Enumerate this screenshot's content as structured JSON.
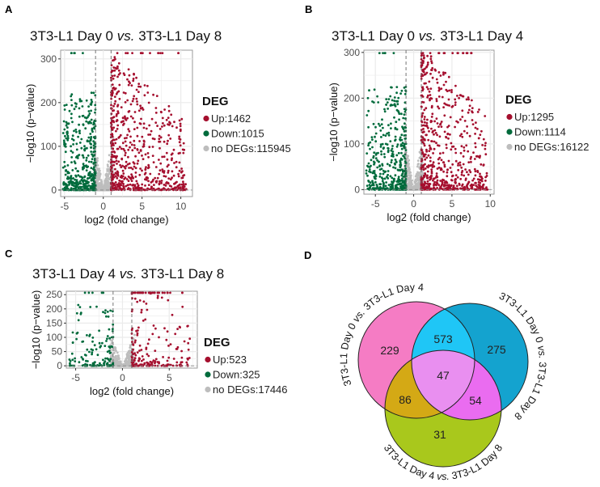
{
  "panels": {
    "a": {
      "letter": "A"
    },
    "b": {
      "letter": "B"
    },
    "c": {
      "letter": "C"
    },
    "d": {
      "letter": "D"
    }
  },
  "colors": {
    "up": "#a50f2e",
    "down": "#006b3c",
    "none": "#bdbdbd",
    "venn_pink": "#f57cc4",
    "venn_blue": "#14a3cf",
    "venn_green": "#a9c81c"
  },
  "chart_data": [
    {
      "type": "scatter",
      "title_pre": "3T3-L1 Day 0 ",
      "title_vs": "vs.",
      "title_post": " 3T3-L1 Day 8",
      "xlabel": "log2 (fold change)",
      "ylabel": "−log10 (p−value)",
      "xlim": [
        -5.5,
        11.5
      ],
      "ylim": [
        -15,
        320
      ],
      "xticks": [
        "-5",
        "0",
        "5",
        "10"
      ],
      "yticks": [
        "0",
        "100",
        "200",
        "300"
      ],
      "thresholds": {
        "log2fc": [
          -1,
          1
        ],
        "neglog10p": 0
      },
      "grid": true,
      "legend": {
        "title": "DEG",
        "position": "right",
        "items": [
          "Up:1462",
          "Down:1015",
          "no DEGs:115945"
        ]
      },
      "counts": {
        "up": 1462,
        "down": 1015,
        "none": 115945
      }
    },
    {
      "type": "scatter",
      "title_pre": "3T3-L1 Day 0 ",
      "title_vs": "vs.",
      "title_post": " 3T3-L1 Day 4",
      "xlabel": "log2 (fold change)",
      "ylabel": "−log10 (p−value)",
      "xlim": [
        -6.5,
        10.5
      ],
      "ylim": [
        -10,
        305
      ],
      "xticks": [
        "-5",
        "0",
        "5",
        "10"
      ],
      "yticks": [
        "0",
        "100",
        "200",
        "300"
      ],
      "thresholds": {
        "log2fc": [
          -1,
          1
        ],
        "neglog10p": 0
      },
      "grid": true,
      "legend": {
        "title": "DEG",
        "position": "right",
        "items": [
          "Up:1295",
          "Down:1114",
          "no DEGs:16122"
        ]
      },
      "counts": {
        "up": 1295,
        "down": 1114,
        "none": 16122
      }
    },
    {
      "type": "scatter",
      "title_pre": "3T3-L1 Day 4 ",
      "title_vs": "vs.",
      "title_post": " 3T3-L1 Day 8",
      "xlabel": "log2 (fold change)",
      "ylabel": "−log10 (p−value)",
      "xlim": [
        -6,
        8
      ],
      "ylim": [
        -8,
        262
      ],
      "xticks": [
        "-5",
        "0",
        "5"
      ],
      "yticks": [
        "0",
        "50",
        "100",
        "150",
        "200",
        "250"
      ],
      "thresholds": {
        "log2fc": [
          -1,
          1
        ],
        "neglog10p": 0
      },
      "grid": true,
      "legend": {
        "title": "DEG",
        "position": "right",
        "items": [
          "Up:523",
          "Down:325",
          "no DEGs:17446"
        ]
      },
      "counts": {
        "up": 523,
        "down": 325,
        "none": 17446
      }
    },
    {
      "type": "venn",
      "sets": [
        "3T3-L1 Day 0 vs. 3T3-L1 Day 4",
        "3T3-L1 Day 0 vs. 3T3-L1 Day 8",
        "3T3-L1 Day 4 vs. 3T3-L1 Day 8"
      ],
      "set_labels": [
        {
          "pre": "3T3-L1 Day 0 ",
          "vs": "vs.",
          "post": " 3T3-L1 Day 4"
        },
        {
          "pre": "3T3-L1 Day 0 ",
          "vs": "vs.",
          "post": " 3T3-L1 Day 8"
        },
        {
          "pre": "3T3-L1 Day 4 ",
          "vs": "vs.",
          "post": " 3T3-L1 Day 8"
        }
      ],
      "regions": {
        "only_0v4": "229",
        "only_0v8": "275",
        "only_4v8": "31",
        "0v4_and_0v8": "573",
        "0v4_and_4v8": "86",
        "0v8_and_4v8": "54",
        "all": "47"
      }
    }
  ]
}
